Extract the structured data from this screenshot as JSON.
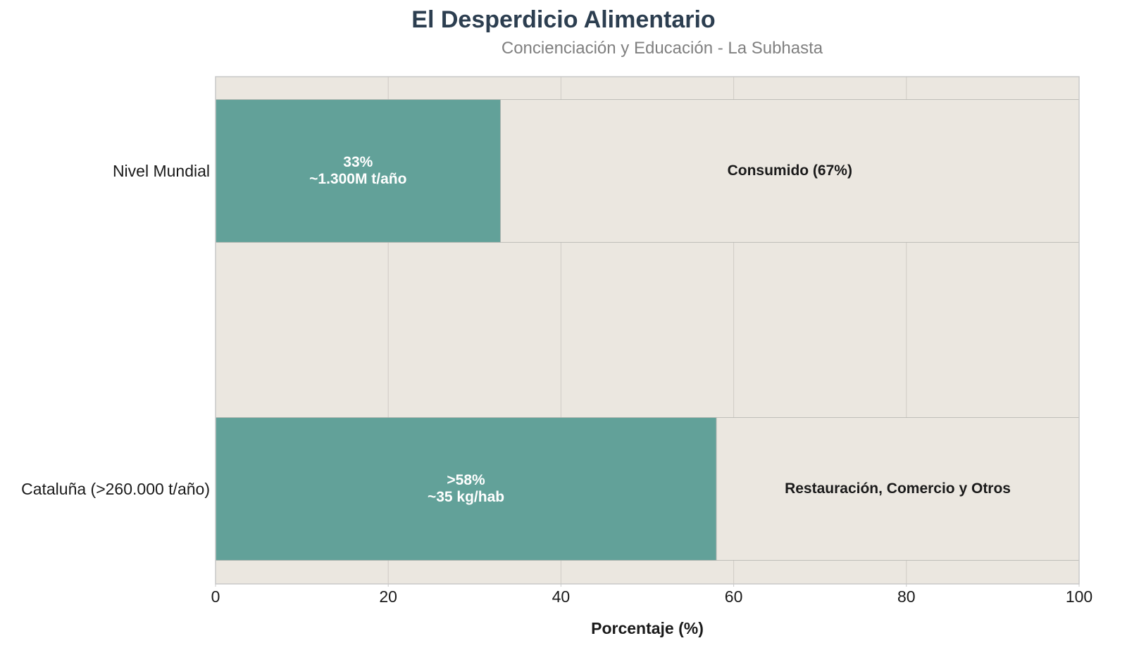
{
  "chart_data": {
    "type": "bar",
    "orientation": "horizontal",
    "stacked": true,
    "title": "El Desperdicio Alimentario",
    "subtitle": "Concienciación y Educación - La Subhasta",
    "xlabel": "Porcentaje (%)",
    "ylabel": "",
    "xlim": [
      0,
      100
    ],
    "xticks": [
      0,
      20,
      40,
      60,
      80,
      100
    ],
    "grid": true,
    "categories": [
      "Nivel Mundial",
      "Cataluña (>260.000 t/año)"
    ],
    "series": [
      {
        "values": [
          33,
          58
        ]
      },
      {
        "values": [
          67,
          42
        ]
      }
    ],
    "bar_labels": [
      {
        "line1": "33%",
        "line2": "~1.300M t/año",
        "rest": "Consumido (67%)"
      },
      {
        "line1": ">58%",
        "line2": "~35 kg/hab",
        "rest": "Restauración, Comercio y Otros"
      }
    ],
    "colors": {
      "highlight": "#62a199",
      "rest": "#ebe7e0",
      "plot_background": "#ebe7e0",
      "grid": "#cfcbc5",
      "axis": "#c8c8c8",
      "title": "#2c3e50",
      "subtitle": "#808080",
      "highlight_text": "#ffffff",
      "rest_text": "#1a1a1a"
    }
  }
}
